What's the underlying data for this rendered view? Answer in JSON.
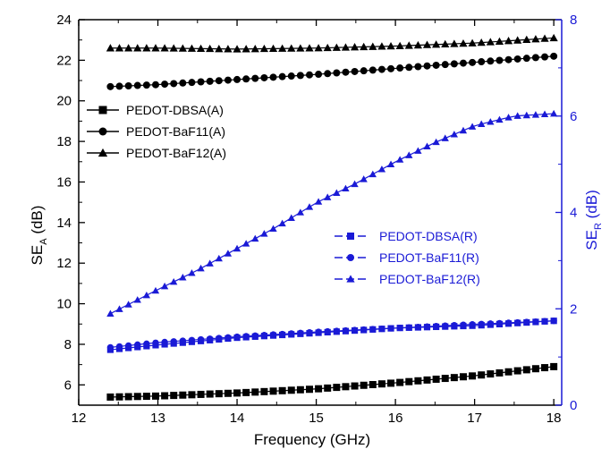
{
  "chart_data": {
    "type": "line",
    "title": "",
    "xlabel": "Frequency (GHz)",
    "ylabel_left": "SE_A (dB)",
    "ylabel_left_main": "SE",
    "ylabel_left_sub": "A",
    "ylabel_left_unit": " (dB)",
    "ylabel_right": "SE_R (dB)",
    "ylabel_right_main": "SE",
    "ylabel_right_sub": "R",
    "ylabel_right_unit": " (dB)",
    "xlim": [
      12,
      18.1
    ],
    "ylim_left": [
      5,
      24
    ],
    "ylim_right": [
      0,
      8
    ],
    "x_ticks": [
      12,
      13,
      14,
      15,
      16,
      17,
      18
    ],
    "y_left_ticks": [
      6,
      8,
      10,
      12,
      14,
      16,
      18,
      20,
      22,
      24
    ],
    "y_right_ticks": [
      0,
      2,
      4,
      6,
      8
    ],
    "x_range": [
      12.4,
      18.0
    ],
    "points_per_series": 50,
    "grid": false,
    "colors": {
      "absorption": "#000000",
      "reflection": "#1a1ad6"
    },
    "series": [
      {
        "name": "PEDOT-DBSA(A)",
        "axis": "left",
        "marker": "square",
        "x": [
          12.4,
          13,
          14,
          15,
          16,
          17,
          18
        ],
        "y": [
          5.4,
          5.45,
          5.6,
          5.8,
          6.1,
          6.45,
          6.9
        ]
      },
      {
        "name": "PEDOT-BaF11(A)",
        "axis": "left",
        "marker": "circle",
        "x": [
          12.4,
          13,
          14,
          15,
          16,
          17,
          18
        ],
        "y": [
          20.7,
          20.8,
          21.05,
          21.3,
          21.6,
          21.9,
          22.2
        ]
      },
      {
        "name": "PEDOT-BaF12(A)",
        "axis": "left",
        "marker": "triangle",
        "x": [
          12.4,
          13,
          14,
          15,
          16,
          17,
          18
        ],
        "y": [
          22.6,
          22.6,
          22.55,
          22.6,
          22.7,
          22.85,
          23.1
        ]
      },
      {
        "name": "PEDOT-DBSA(R)",
        "axis": "right",
        "marker": "square",
        "x": [
          12.4,
          13,
          14,
          15,
          16,
          17,
          18
        ],
        "y": [
          1.15,
          1.25,
          1.4,
          1.5,
          1.6,
          1.65,
          1.75
        ]
      },
      {
        "name": "PEDOT-BaF11(R)",
        "axis": "right",
        "marker": "circle",
        "x": [
          12.4,
          13,
          14,
          15,
          16,
          17,
          18
        ],
        "y": [
          1.2,
          1.3,
          1.42,
          1.52,
          1.6,
          1.68,
          1.75
        ]
      },
      {
        "name": "PEDOT-BaF12(R)",
        "axis": "right",
        "marker": "triangle",
        "x": [
          12.4,
          13,
          13.5,
          14,
          14.5,
          15,
          15.5,
          16,
          16.5,
          17,
          17.5,
          18
        ],
        "y": [
          1.9,
          2.4,
          2.8,
          3.25,
          3.7,
          4.2,
          4.6,
          5.05,
          5.45,
          5.8,
          6.0,
          6.05
        ]
      }
    ],
    "legend_absorption": {
      "placement": "upper-left",
      "entries": [
        "PEDOT-DBSA(A)",
        "PEDOT-BaF11(A)",
        "PEDOT-BaF12(A)"
      ]
    },
    "legend_reflection": {
      "placement": "middle-right",
      "entries": [
        "PEDOT-DBSA(R)",
        "PEDOT-BaF11(R)",
        "PEDOT-BaF12(R)"
      ]
    }
  }
}
